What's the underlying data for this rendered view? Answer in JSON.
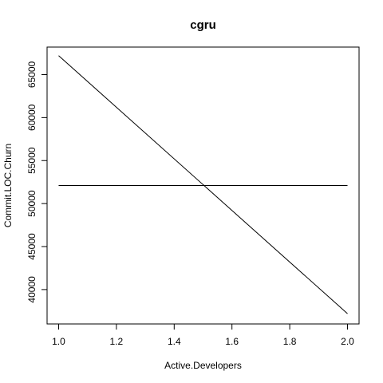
{
  "chart_data": {
    "type": "line",
    "title": "cgru",
    "xlabel": "Active.Developers",
    "ylabel": "Commit.LOC.Churn",
    "xlim": [
      0.96,
      2.04
    ],
    "ylim": [
      36000,
      68200
    ],
    "x_ticks": [
      1.0,
      1.2,
      1.4,
      1.6,
      1.8,
      2.0
    ],
    "x_tick_labels": [
      "1.0",
      "1.2",
      "1.4",
      "1.6",
      "1.8",
      "2.0"
    ],
    "y_ticks": [
      40000,
      45000,
      50000,
      55000,
      60000,
      65000
    ],
    "y_tick_labels": [
      "40000",
      "45000",
      "50000",
      "55000",
      "60000",
      "65000"
    ],
    "grid": false,
    "legend": "none",
    "series": [
      {
        "x": [
          1.0,
          2.0
        ],
        "values": [
          67200,
          37200
        ],
        "color": "#000000"
      },
      {
        "x": [
          1.0,
          2.0
        ],
        "values": [
          52100,
          52100
        ],
        "color": "#000000"
      }
    ]
  }
}
